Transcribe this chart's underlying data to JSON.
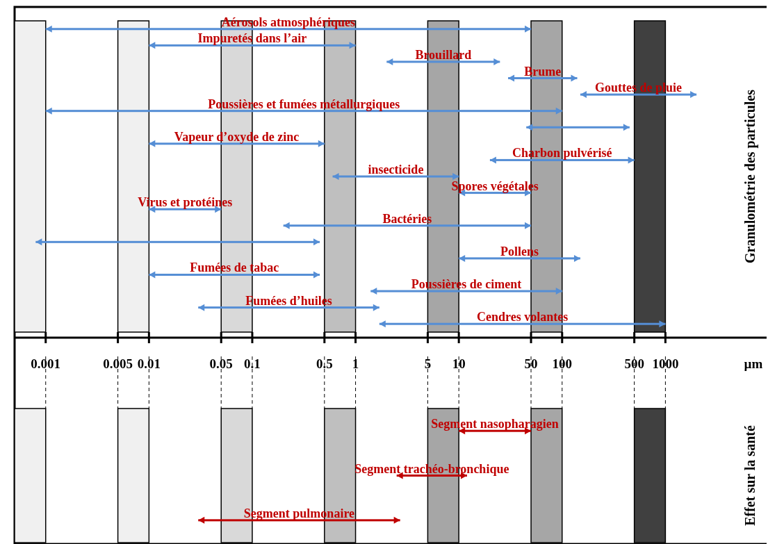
{
  "chart_data": [
    {
      "type": "bar",
      "orientation": "horizontal",
      "log": "x",
      "ylabel": "Granulométrie des particules",
      "xlabel": "µm",
      "tick_labels": "x",
      "color": "#558ed5",
      "categories": [
        "Aérosols atmosphériques",
        "Impuretés dans l’air",
        "Brouillard",
        "Brume",
        "Gouttes de pluie",
        "Poussières et fumées métallurgiques",
        null,
        "Vapeur d’oxyde de zinc",
        "Charbon pulvérisé",
        "insecticide",
        "Spores végétales",
        "Virus et protéines",
        "Bactéries",
        null,
        "Pollens",
        "Fumées de tabac",
        "Poussières de ciment",
        "Fumées d’huiles",
        "Cendres volantes"
      ],
      "base": [
        0.001,
        0.01,
        2,
        30,
        150,
        0.001,
        45,
        0.01,
        20,
        0.6,
        10,
        0.01,
        0.2,
        0.0008,
        10,
        0.01,
        1.4,
        0.03,
        1.7
      ],
      "values": [
        49.999,
        0.99,
        23,
        110,
        1850,
        99.999,
        405,
        0.49,
        480,
        9.4,
        40,
        0.04,
        49.8,
        0.4492,
        140,
        0.44,
        98.6,
        1.67,
        998.3
      ],
      "xlim": [
        0.0005,
        10000
      ],
      "xticks": [
        0.001,
        0.005,
        0.01,
        0.05,
        0.1,
        0.5,
        1,
        5,
        10,
        50,
        100,
        500,
        1000
      ],
      "bands": [
        {
          "axis": "x",
          "from": 0.0005,
          "to": 0.001,
          "color": "#f0f0f0"
        },
        {
          "axis": "x",
          "from": 0.005,
          "to": 0.01,
          "color": "#f0f0f0"
        },
        {
          "axis": "x",
          "from": 0.05,
          "to": 0.1,
          "color": "#d9d9d9"
        },
        {
          "axis": "x",
          "from": 0.5,
          "to": 1,
          "color": "#bfbfbf"
        },
        {
          "axis": "x",
          "from": 5,
          "to": 10,
          "color": "#a6a6a6"
        },
        {
          "axis": "x",
          "from": 50,
          "to": 100,
          "color": "#a6a6a6"
        },
        {
          "axis": "x",
          "from": 500,
          "to": 1000,
          "color": "#404040"
        }
      ]
    },
    {
      "type": "bar",
      "orientation": "horizontal",
      "log": "x",
      "ylabel": "Effet sur la santé",
      "tick_labels": false,
      "color": "#c00000",
      "categories": [
        "Segment nasopharagien",
        "Segment trachéo-bronchique",
        "Segment pulmonaire"
      ],
      "base": [
        10,
        2.5,
        0.03
      ],
      "values": [
        40,
        9.5,
        2.67
      ],
      "xlim": [
        0.0005,
        10000
      ],
      "xticks": [
        0.001,
        0.005,
        0.01,
        0.05,
        0.1,
        0.5,
        1,
        5,
        10,
        50,
        100,
        500,
        1000
      ],
      "bands": [
        {
          "axis": "x",
          "from": 0.0005,
          "to": 0.001,
          "color": "#f0f0f0"
        },
        {
          "axis": "x",
          "from": 0.005,
          "to": 0.01,
          "color": "#f0f0f0"
        },
        {
          "axis": "x",
          "from": 0.05,
          "to": 0.1,
          "color": "#d9d9d9"
        },
        {
          "axis": "x",
          "from": 0.5,
          "to": 1,
          "color": "#bfbfbf"
        },
        {
          "axis": "x",
          "from": 5,
          "to": 10,
          "color": "#a6a6a6"
        },
        {
          "axis": "x",
          "from": 50,
          "to": 100,
          "color": "#a6a6a6"
        },
        {
          "axis": "x",
          "from": 500,
          "to": 1000,
          "color": "#404040"
        }
      ]
    }
  ]
}
